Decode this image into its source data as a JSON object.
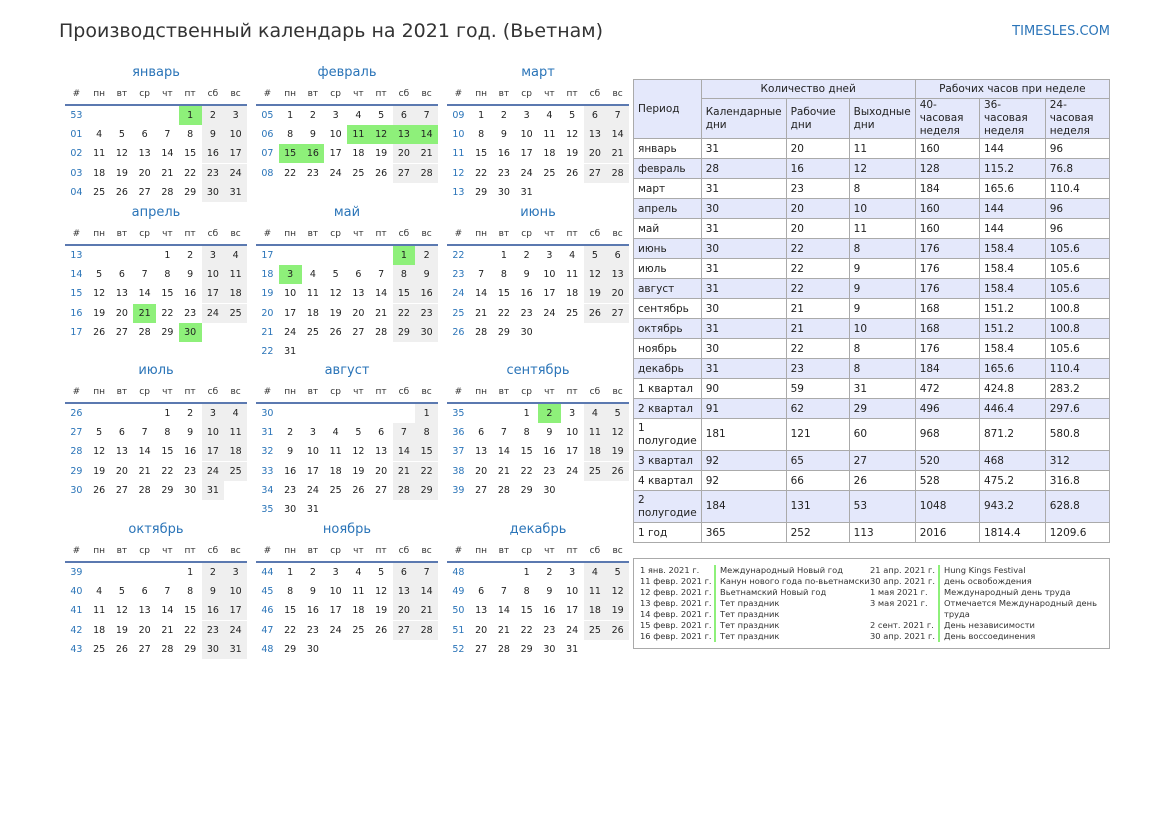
{
  "title": "Производственный календарь на 2021 год. (Вьетнам)",
  "site": "TIMESLES.COM",
  "colors": {
    "accent": "#2a74b8",
    "holiday": "#8ef07a",
    "weekend": "#efefef",
    "header_bg": "#e4e8fb"
  },
  "calendar": {
    "week_header": [
      "#",
      "пн",
      "вт",
      "ср",
      "чт",
      "пт",
      "сб",
      "вс"
    ],
    "months": [
      {
        "name": "январь",
        "start": 4,
        "days": 31,
        "weeks": [
          "53",
          "01",
          "02",
          "03",
          "04"
        ],
        "holidays": [
          1
        ]
      },
      {
        "name": "февраль",
        "start": 0,
        "days": 28,
        "weeks": [
          "05",
          "06",
          "07",
          "08"
        ],
        "holidays": [
          11,
          12,
          13,
          14,
          15,
          16
        ]
      },
      {
        "name": "март",
        "start": 0,
        "days": 31,
        "weeks": [
          "09",
          "10",
          "11",
          "12",
          "13"
        ],
        "holidays": []
      },
      {
        "name": "апрель",
        "start": 3,
        "days": 30,
        "weeks": [
          "13",
          "14",
          "15",
          "16",
          "17"
        ],
        "holidays": [
          21,
          30
        ]
      },
      {
        "name": "май",
        "start": 5,
        "days": 31,
        "weeks": [
          "17",
          "18",
          "19",
          "20",
          "21",
          "22"
        ],
        "holidays": [
          1,
          3
        ]
      },
      {
        "name": "июнь",
        "start": 1,
        "days": 30,
        "weeks": [
          "22",
          "23",
          "24",
          "25",
          "26"
        ],
        "holidays": []
      },
      {
        "name": "июль",
        "start": 3,
        "days": 31,
        "weeks": [
          "26",
          "27",
          "28",
          "29",
          "30"
        ],
        "holidays": []
      },
      {
        "name": "август",
        "start": 6,
        "days": 31,
        "weeks": [
          "30",
          "31",
          "32",
          "33",
          "34",
          "35"
        ],
        "holidays": []
      },
      {
        "name": "сентябрь",
        "start": 2,
        "days": 30,
        "weeks": [
          "35",
          "36",
          "37",
          "38",
          "39"
        ],
        "holidays": [
          2
        ]
      },
      {
        "name": "октябрь",
        "start": 4,
        "days": 31,
        "weeks": [
          "39",
          "40",
          "41",
          "42",
          "43"
        ],
        "holidays": []
      },
      {
        "name": "ноябрь",
        "start": 0,
        "days": 30,
        "weeks": [
          "44",
          "45",
          "46",
          "47",
          "48"
        ],
        "holidays": []
      },
      {
        "name": "декабрь",
        "start": 2,
        "days": 31,
        "weeks": [
          "48",
          "49",
          "50",
          "51",
          "52"
        ],
        "holidays": []
      }
    ]
  },
  "stats": {
    "period_label": "Период",
    "days_group": "Количество дней",
    "hours_group": "Рабочих часов при неделе",
    "columns": [
      "Календарные дни",
      "Рабочие дни",
      "Выходные дни",
      "40-часовая неделя",
      "36-часовая неделя",
      "24-часовая неделя"
    ],
    "rows": [
      [
        "январь",
        "31",
        "20",
        "11",
        "160",
        "144",
        "96"
      ],
      [
        "февраль",
        "28",
        "16",
        "12",
        "128",
        "115.2",
        "76.8"
      ],
      [
        "март",
        "31",
        "23",
        "8",
        "184",
        "165.6",
        "110.4"
      ],
      [
        "апрель",
        "30",
        "20",
        "10",
        "160",
        "144",
        "96"
      ],
      [
        "май",
        "31",
        "20",
        "11",
        "160",
        "144",
        "96"
      ],
      [
        "июнь",
        "30",
        "22",
        "8",
        "176",
        "158.4",
        "105.6"
      ],
      [
        "июль",
        "31",
        "22",
        "9",
        "176",
        "158.4",
        "105.6"
      ],
      [
        "август",
        "31",
        "22",
        "9",
        "176",
        "158.4",
        "105.6"
      ],
      [
        "сентябрь",
        "30",
        "21",
        "9",
        "168",
        "151.2",
        "100.8"
      ],
      [
        "октябрь",
        "31",
        "21",
        "10",
        "168",
        "151.2",
        "100.8"
      ],
      [
        "ноябрь",
        "30",
        "22",
        "8",
        "176",
        "158.4",
        "105.6"
      ],
      [
        "декабрь",
        "31",
        "23",
        "8",
        "184",
        "165.6",
        "110.4"
      ],
      [
        "1 квартал",
        "90",
        "59",
        "31",
        "472",
        "424.8",
        "283.2"
      ],
      [
        "2 квартал",
        "91",
        "62",
        "29",
        "496",
        "446.4",
        "297.6"
      ],
      [
        "1 полугодие",
        "181",
        "121",
        "60",
        "968",
        "871.2",
        "580.8"
      ],
      [
        "3 квартал",
        "92",
        "65",
        "27",
        "520",
        "468",
        "312"
      ],
      [
        "4 квартал",
        "92",
        "66",
        "26",
        "528",
        "475.2",
        "316.8"
      ],
      [
        "2 полугодие",
        "184",
        "131",
        "53",
        "1048",
        "943.2",
        "628.8"
      ],
      [
        "1 год",
        "365",
        "252",
        "113",
        "2016",
        "1814.4",
        "1209.6"
      ]
    ]
  },
  "holidays": {
    "left": [
      {
        "date": "1 янв. 2021 г.",
        "name": "Международный Новый год"
      },
      {
        "date": "11 февр. 2021 г.",
        "name": "Канун нового года по-вьетнамски"
      },
      {
        "date": "12 февр. 2021 г.",
        "name": "Вьетнамский Новый год"
      },
      {
        "date": "13 февр. 2021 г.",
        "name": "Тет праздник"
      },
      {
        "date": "14 февр. 2021 г.",
        "name": "Тет праздник"
      },
      {
        "date": "15 февр. 2021 г.",
        "name": "Тет праздник"
      },
      {
        "date": "16 февр. 2021 г.",
        "name": "Тет праздник"
      }
    ],
    "right": [
      {
        "date": "21 апр. 2021 г.",
        "name": "Hung Kings Festival"
      },
      {
        "date": "30 апр. 2021 г.",
        "name": "день освобождения"
      },
      {
        "date": "1 мая 2021 г.",
        "name": "Международный день труда"
      },
      {
        "date": "3 мая 2021 г.",
        "name": "Отмечается Международный день труда"
      },
      {
        "date": "2 сент. 2021 г.",
        "name": "День независимости"
      },
      {
        "date": "30 апр. 2021 г.",
        "name": "День воссоединения"
      }
    ]
  }
}
